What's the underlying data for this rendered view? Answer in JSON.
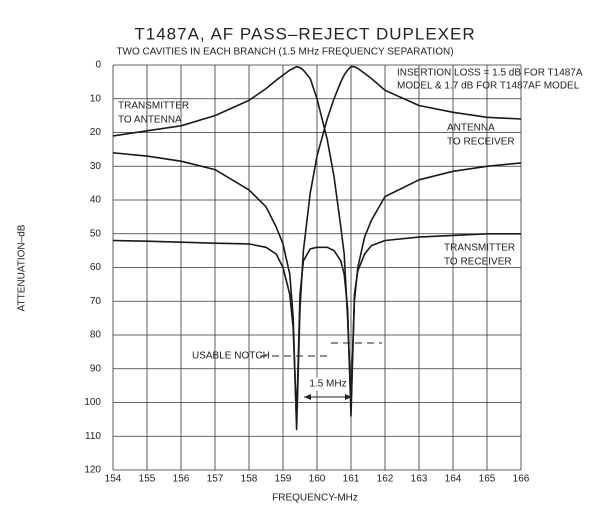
{
  "chart_data": {
    "type": "line",
    "title": "T1487A, AF PASS–REJECT DUPLEXER",
    "subtitle": "TWO CAVITIES IN EACH BRANCH (1.5 MHz FREQUENCY SEPARATION)",
    "x_label": "FREQUENCY-MHz",
    "y_label": "ATTENUATION–dB",
    "xlim": [
      154,
      166
    ],
    "xticks": [
      154,
      155,
      156,
      157,
      158,
      159,
      160,
      161,
      162,
      163,
      164,
      165,
      166
    ],
    "ylim": [
      0,
      120
    ],
    "y_inverted": true,
    "yticks": [
      0,
      10,
      20,
      30,
      40,
      50,
      60,
      70,
      80,
      90,
      100,
      110,
      120
    ],
    "grid": true,
    "x": [
      154,
      155,
      156,
      157,
      158,
      158.5,
      158.8,
      159,
      159.2,
      159.3,
      159.4,
      159.5,
      159.6,
      159.8,
      160,
      160.3,
      160.5,
      160.7,
      160.8,
      160.9,
      161,
      161.1,
      161.2,
      161.4,
      161.6,
      162,
      163,
      164,
      165,
      166
    ],
    "series": [
      {
        "label_lines": [
          "TRANSMITTER",
          "TO ANTENNA"
        ],
        "color": "#1a1a1a",
        "values": [
          21,
          19.5,
          18,
          15,
          10.5,
          7,
          4.5,
          3,
          1.5,
          1,
          0.5,
          0.8,
          1.5,
          4,
          10,
          22,
          33,
          48,
          56,
          75,
          100,
          70,
          60,
          51,
          46,
          39,
          34,
          31.5,
          30,
          29
        ]
      },
      {
        "label_lines": [
          "ANTENNA",
          "TO RECEIVER"
        ],
        "color": "#1a1a1a",
        "values": [
          26,
          27,
          28.5,
          31,
          37,
          42,
          48,
          53,
          62,
          75,
          108,
          72,
          55,
          38,
          27,
          16,
          10,
          5,
          3,
          1.5,
          0.5,
          0.5,
          1,
          2.5,
          4,
          7.5,
          12,
          14,
          15.5,
          16
        ]
      },
      {
        "label_lines": [
          "TRANSMITTER",
          "TO RECEIVER"
        ],
        "color": "#1a1a1a",
        "values": [
          52,
          52.2,
          52.5,
          52.8,
          53,
          54,
          56,
          60,
          68,
          78,
          105,
          68,
          58,
          54.5,
          54,
          54,
          55,
          58,
          62,
          72,
          104,
          68,
          61,
          56,
          53.5,
          52,
          51,
          50.5,
          50,
          50
        ]
      }
    ],
    "annotations": [
      "INSERTION LOSS = 1.5 dB FOR T1487A",
      "MODEL & 1.7 dB FOR T1487AF MODEL",
      "USABLE  NOTCH",
      "1.5 MHz"
    ]
  }
}
